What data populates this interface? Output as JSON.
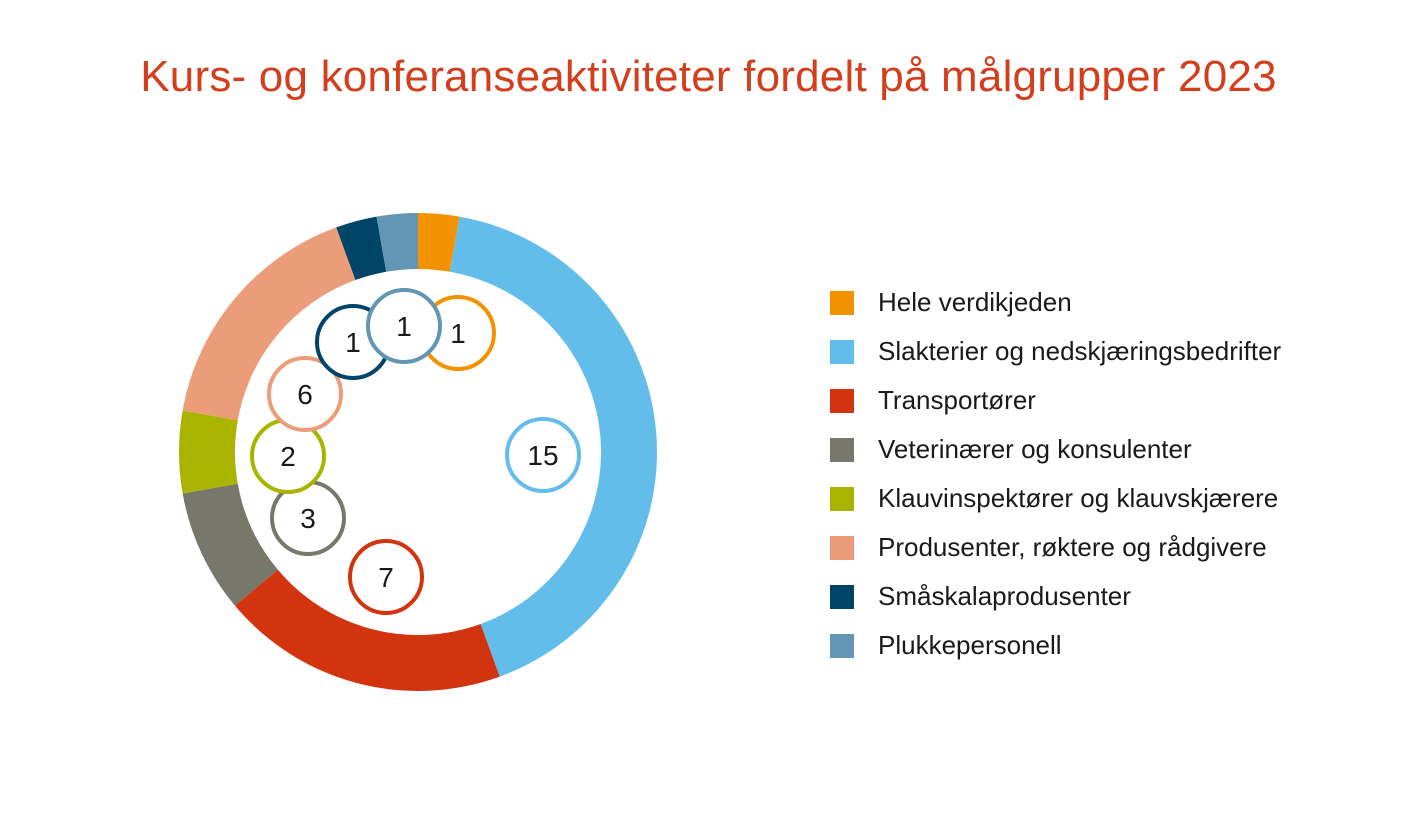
{
  "chart_data": {
    "type": "pie",
    "title": "Kurs- og konferanseaktiviteter fordelt på målgrupper 2023",
    "categories": [
      "Hele verdikjeden",
      "Slakterier og nedskjæringsbedrifter",
      "Transportører",
      "Veterinærer og konsulenter",
      "Klauvinspektører og klauvskjærere",
      "Produsenter, røktere og rådgivere",
      "Småskalaprodusenter",
      "Plukkepersonell"
    ],
    "values": [
      1,
      15,
      7,
      3,
      2,
      6,
      1,
      1
    ],
    "value_labels": [
      "1",
      "15",
      "7",
      "3",
      "2",
      "6",
      "1",
      "1"
    ],
    "colors": [
      "#f39200",
      "#62bdea",
      "#d33410",
      "#77786a",
      "#a9b400",
      "#eb9d7a",
      "#004468",
      "#6396b4"
    ],
    "legend": "right",
    "style": "donut"
  }
}
